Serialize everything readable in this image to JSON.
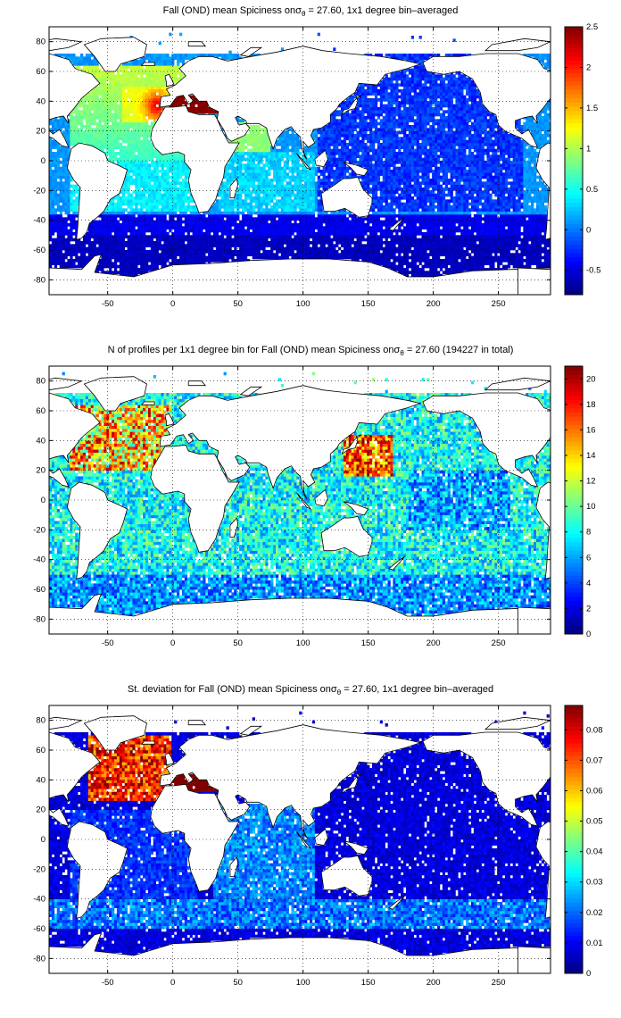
{
  "chart_data": [
    {
      "type": "heatmap",
      "title": {
        "pre": "Fall (OND) mean Spiciness on",
        "sigma": "σ",
        "sub": "θ",
        "post": " = 27.60, 1x1 degree bin–averaged"
      },
      "x_ticks": [
        -50,
        0,
        50,
        100,
        150,
        200,
        250
      ],
      "y_ticks": [
        -80,
        -60,
        -40,
        -20,
        0,
        20,
        40,
        60,
        80
      ],
      "xlim": [
        -95,
        290
      ],
      "ylim": [
        -90,
        90
      ],
      "colorbar": {
        "min": -0.8,
        "max": 2.5,
        "ticks": [
          "-0.5",
          "0",
          "0.5",
          "1",
          "1.5",
          "2",
          "2.5"
        ],
        "tick_values": [
          -0.5,
          0,
          0.5,
          1,
          1.5,
          2,
          2.5
        ]
      },
      "colormap": "jet",
      "grid": "dotted",
      "regions": [
        {
          "region": "North Atlantic / Mediterranean outflow",
          "value": 2.0
        },
        {
          "region": "Mediterranean Sea",
          "value": 2.5
        },
        {
          "region": "Subtropical North Atlantic",
          "value": 0.8
        },
        {
          "region": "Arabian Sea / Red Sea outflow",
          "value": 0.9
        },
        {
          "region": "Indian Ocean",
          "value": 0.2
        },
        {
          "region": "Pacific Ocean",
          "value": -0.3
        },
        {
          "region": "Southern Ocean",
          "value": -0.5
        }
      ]
    },
    {
      "type": "heatmap",
      "title": {
        "pre": "N of profiles per 1x1 degree bin for Fall (OND) mean Spiciness on",
        "sigma": "σ",
        "sub": "θ",
        "post": " = 27.60 (194227 in total)"
      },
      "x_ticks": [
        -50,
        0,
        50,
        100,
        150,
        200,
        250
      ],
      "y_ticks": [
        -80,
        -60,
        -40,
        -20,
        0,
        20,
        40,
        60,
        80
      ],
      "xlim": [
        -95,
        290
      ],
      "ylim": [
        -90,
        90
      ],
      "colorbar": {
        "min": 0,
        "max": 21,
        "ticks": [
          "0",
          "2",
          "4",
          "6",
          "8",
          "10",
          "12",
          "14",
          "16",
          "18",
          "20"
        ],
        "tick_values": [
          0,
          2,
          4,
          6,
          8,
          10,
          12,
          14,
          16,
          18,
          20
        ]
      },
      "colormap": "jet",
      "grid": "dotted",
      "regions": [
        {
          "region": "North Atlantic",
          "value": 14
        },
        {
          "region": "Kuroshio region",
          "value": 18
        },
        {
          "region": "North Pacific",
          "value": 9
        },
        {
          "region": "Southern Ocean",
          "value": 5
        },
        {
          "region": "Indian Ocean",
          "value": 7
        }
      ]
    },
    {
      "type": "heatmap",
      "title": {
        "pre": "St. deviation for Fall (OND) mean Spiciness on",
        "sigma": "σ",
        "sub": "θ",
        "post": " = 27.60, 1x1 degree bin–averaged"
      },
      "x_ticks": [
        -50,
        0,
        50,
        100,
        150,
        200,
        250
      ],
      "y_ticks": [
        -80,
        -60,
        -40,
        -20,
        0,
        20,
        40,
        60,
        80
      ],
      "xlim": [
        -95,
        290
      ],
      "ylim": [
        -90,
        90
      ],
      "colorbar": {
        "min": 0,
        "max": 0.088,
        "ticks": [
          "0",
          "0.01",
          "0.02",
          "0.03",
          "0.04",
          "0.05",
          "0.06",
          "0.07",
          "0.08"
        ],
        "tick_values": [
          0,
          0.01,
          0.02,
          0.03,
          0.04,
          0.05,
          0.06,
          0.07,
          0.08
        ]
      },
      "colormap": "jet",
      "grid": "dotted",
      "regions": [
        {
          "region": "North Atlantic",
          "value": 0.085
        },
        {
          "region": "Mediterranean Sea",
          "value": 0.088
        },
        {
          "region": "Indian Ocean",
          "value": 0.02
        },
        {
          "region": "Pacific Ocean",
          "value": 0.005
        },
        {
          "region": "Southern Ocean",
          "value": 0.015
        }
      ]
    }
  ]
}
